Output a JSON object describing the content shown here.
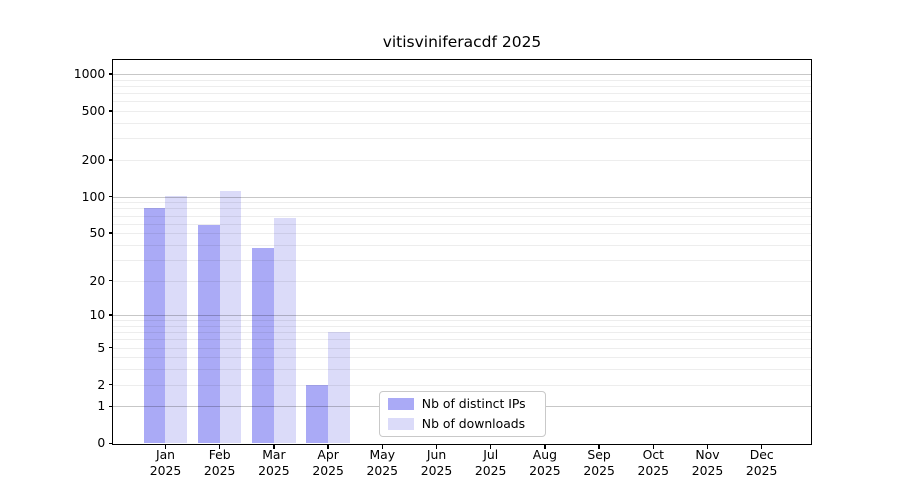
{
  "chart_data": {
    "type": "bar",
    "title": "vitisviniferacdf 2025",
    "categories": [
      "Jan",
      "Feb",
      "Mar",
      "Apr",
      "May",
      "Jun",
      "Jul",
      "Aug",
      "Sep",
      "Oct",
      "Nov",
      "Dec"
    ],
    "category_year": "2025",
    "series": [
      {
        "name": "Nb of distinct IPs",
        "color": "#aaaaf6",
        "values": [
          80,
          58,
          38,
          2,
          0,
          0,
          0,
          0,
          0,
          0,
          0,
          0
        ]
      },
      {
        "name": "Nb of downloads",
        "color": "#dbdbf9",
        "values": [
          101,
          112,
          67,
          7,
          0,
          0,
          0,
          0,
          0,
          0,
          0,
          0
        ]
      }
    ],
    "xlabel": "",
    "ylabel": "",
    "yscale": "log1p",
    "ylim": [
      0,
      1300
    ],
    "yticks": [
      0,
      1,
      2,
      5,
      10,
      20,
      50,
      100,
      200,
      500,
      1000
    ],
    "major_gridlines": [
      1,
      10,
      100,
      1000
    ],
    "minor_gridlines": [
      2,
      3,
      4,
      5,
      6,
      7,
      8,
      9,
      20,
      30,
      40,
      50,
      60,
      70,
      80,
      90,
      200,
      300,
      400,
      500,
      600,
      700,
      800,
      900
    ],
    "grid": "horizontal, drawn over bars",
    "legend_position": "inside lower center"
  }
}
